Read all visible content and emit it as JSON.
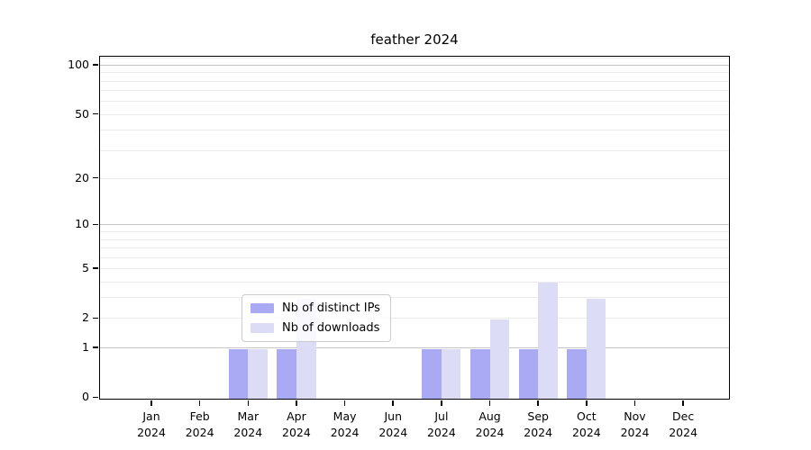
{
  "title": "feather 2024",
  "legend": {
    "items": [
      {
        "label": "Nb of distinct IPs",
        "color_key": "ips"
      },
      {
        "label": "Nb of downloads",
        "color_key": "downloads"
      }
    ]
  },
  "colors": {
    "ips": "#aaaaf4",
    "downloads": "#dcdcf7",
    "grid_major": "#c6c6c6",
    "grid_minor": "#ebebeb",
    "axis": "#000000"
  },
  "chart_data": {
    "type": "bar",
    "title": "feather 2024",
    "categories": [
      "Jan",
      "Feb",
      "Mar",
      "Apr",
      "May",
      "Jun",
      "Jul",
      "Aug",
      "Sep",
      "Oct",
      "Nov",
      "Dec"
    ],
    "year": "2024",
    "series": [
      {
        "name": "Nb of distinct IPs",
        "color_key": "ips",
        "values": [
          0,
          0,
          1,
          1,
          0,
          0,
          1,
          1,
          1,
          1,
          0,
          0
        ]
      },
      {
        "name": "Nb of downloads",
        "color_key": "downloads",
        "values": [
          0,
          0,
          1,
          3,
          0,
          0,
          1,
          2,
          4,
          3,
          0,
          0
        ]
      }
    ],
    "xlabel": "",
    "ylabel": "",
    "yscale": "log1p",
    "ylim": [
      0,
      112
    ],
    "yticks": [
      0,
      1,
      2,
      5,
      10,
      20,
      50,
      100
    ],
    "grid_major_values": [
      1,
      10,
      100
    ],
    "grid_minor_values": [
      2,
      3,
      4,
      5,
      6,
      7,
      8,
      9,
      20,
      30,
      40,
      50,
      60,
      70,
      80,
      90,
      110
    ],
    "grid": "horizontal",
    "legend_position": "lower center"
  }
}
